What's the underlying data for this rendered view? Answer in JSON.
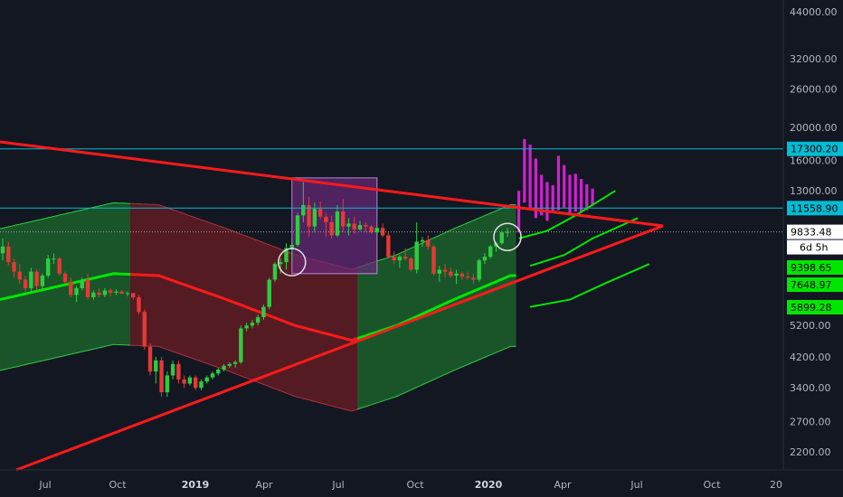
{
  "chart_data": {
    "type": "candlestick",
    "scale": "log",
    "ylim": [
      1900,
      48000
    ],
    "y_ticks": [
      "44000.00",
      "32000.00",
      "26000.00",
      "20000.00",
      "16000.00",
      "13000.00",
      "9833.48",
      "6d 5h",
      "5200.00",
      "4200.00",
      "3400.00",
      "2700.00",
      "2200.00"
    ],
    "x_ticks": [
      {
        "label": "Jul",
        "bold": false
      },
      {
        "label": "Oct",
        "bold": false
      },
      {
        "label": "2019",
        "bold": true
      },
      {
        "label": "Apr",
        "bold": false
      },
      {
        "label": "Jul",
        "bold": false
      },
      {
        "label": "Oct",
        "bold": false
      },
      {
        "label": "2020",
        "bold": true
      },
      {
        "label": "Apr",
        "bold": false
      },
      {
        "label": "Jul",
        "bold": false
      },
      {
        "label": "Oct",
        "bold": false
      },
      {
        "label": "20",
        "bold": false
      }
    ],
    "horizontal_levels": [
      {
        "value": 17300.2,
        "label": "17300.20",
        "color": "#00bcd4"
      },
      {
        "value": 11558.9,
        "label": "11558.90",
        "color": "#00bcd4"
      }
    ],
    "current_price": {
      "value": 9833.48,
      "label": "9833.48",
      "countdown": "6d 5h"
    },
    "right_badges": [
      {
        "value": 9398.65,
        "label": "9398.65",
        "color": "#00e600"
      },
      {
        "value": 7648.97,
        "label": "7648.97",
        "color": "#00e600"
      },
      {
        "value": 5899.28,
        "label": "5899.28",
        "color": "#00e600"
      }
    ],
    "colors": {
      "background": "#131722",
      "up": "#2ecc40",
      "down": "#e53935",
      "projection": "#d41ed4",
      "trendline": "#ff1a1a",
      "band_green": "#1e6b2e",
      "band_red": "#6b1e24",
      "band_line": "#00e600",
      "range_box": "#6a2a7a",
      "level": "#00bcd4"
    },
    "candles_weekly": [
      [
        8500,
        9400,
        8100,
        8900
      ],
      [
        8900,
        9200,
        7800,
        8000
      ],
      [
        8000,
        8200,
        7200,
        7500
      ],
      [
        7500,
        7900,
        6900,
        7100
      ],
      [
        7100,
        7300,
        6500,
        6700
      ],
      [
        6700,
        7700,
        6500,
        7500
      ],
      [
        7500,
        7600,
        6600,
        6800
      ],
      [
        6800,
        7400,
        6600,
        7300
      ],
      [
        7300,
        8400,
        7200,
        8200
      ],
      [
        8200,
        8500,
        7900,
        8200
      ],
      [
        8200,
        8300,
        7300,
        7400
      ],
      [
        7400,
        7500,
        6900,
        7000
      ],
      [
        7000,
        7200,
        6300,
        6400
      ],
      [
        6400,
        6800,
        6100,
        6700
      ],
      [
        6700,
        7200,
        6600,
        7100
      ],
      [
        7100,
        7400,
        6200,
        6300
      ],
      [
        6300,
        6600,
        6200,
        6500
      ],
      [
        6500,
        6700,
        6300,
        6400
      ],
      [
        6400,
        6700,
        6300,
        6600
      ],
      [
        6600,
        6700,
        6350,
        6500
      ],
      [
        6500,
        6650,
        6400,
        6550
      ],
      [
        6550,
        6600,
        6450,
        6450
      ],
      [
        6450,
        6550,
        6350,
        6480
      ],
      [
        6480,
        6500,
        6200,
        6300
      ],
      [
        6300,
        6400,
        5600,
        5700
      ],
      [
        5700,
        5800,
        4400,
        4500
      ],
      [
        4500,
        4600,
        3700,
        3800
      ],
      [
        3800,
        4200,
        3500,
        4100
      ],
      [
        4100,
        4200,
        3200,
        3300
      ],
      [
        3300,
        3800,
        3200,
        3700
      ],
      [
        3700,
        4100,
        3600,
        4000
      ],
      [
        4000,
        4100,
        3500,
        3600
      ],
      [
        3600,
        3700,
        3400,
        3500
      ],
      [
        3500,
        3700,
        3450,
        3650
      ],
      [
        3650,
        3700,
        3350,
        3400
      ],
      [
        3400,
        3600,
        3350,
        3550
      ],
      [
        3550,
        3700,
        3500,
        3650
      ],
      [
        3650,
        3800,
        3600,
        3750
      ],
      [
        3750,
        3900,
        3700,
        3850
      ],
      [
        3850,
        4000,
        3800,
        3950
      ],
      [
        3950,
        4050,
        3900,
        4000
      ],
      [
        4000,
        4100,
        3900,
        4050
      ],
      [
        4050,
        5200,
        4000,
        5100
      ],
      [
        5100,
        5300,
        5000,
        5200
      ],
      [
        5200,
        5400,
        5100,
        5300
      ],
      [
        5300,
        5600,
        5200,
        5500
      ],
      [
        5500,
        6000,
        5400,
        5900
      ],
      [
        5900,
        7200,
        5800,
        7100
      ],
      [
        7100,
        8000,
        7000,
        7900
      ],
      [
        7900,
        8200,
        7400,
        8000
      ],
      [
        8000,
        9100,
        7600,
        8800
      ],
      [
        8800,
        9300,
        8000,
        9000
      ],
      [
        9000,
        11200,
        8900,
        11000
      ],
      [
        11000,
        13800,
        10500,
        11800
      ],
      [
        11800,
        12500,
        9500,
        10200
      ],
      [
        10200,
        12000,
        9800,
        11500
      ],
      [
        11500,
        12100,
        10700,
        10900
      ],
      [
        10900,
        11200,
        9500,
        10500
      ],
      [
        10500,
        11000,
        9400,
        9600
      ],
      [
        9600,
        11800,
        9500,
        11300
      ],
      [
        11300,
        12300,
        9800,
        10200
      ],
      [
        10200,
        10800,
        9600,
        10400
      ],
      [
        10400,
        10900,
        9700,
        10000
      ],
      [
        10000,
        10600,
        9900,
        10300
      ],
      [
        10300,
        10500,
        9800,
        10200
      ],
      [
        10200,
        10300,
        9700,
        9800
      ],
      [
        9800,
        10200,
        9600,
        10100
      ],
      [
        10100,
        10400,
        9500,
        9600
      ],
      [
        9600,
        9800,
        8200,
        8300
      ],
      [
        8300,
        8600,
        7900,
        8100
      ],
      [
        8100,
        8400,
        7700,
        8300
      ],
      [
        8300,
        8800,
        8100,
        8200
      ],
      [
        8200,
        8300,
        7500,
        7600
      ],
      [
        7600,
        10500,
        7400,
        9200
      ],
      [
        9200,
        9500,
        8900,
        9300
      ],
      [
        9300,
        9600,
        8700,
        8900
      ],
      [
        8900,
        9000,
        7300,
        7400
      ],
      [
        7400,
        7800,
        7000,
        7600
      ],
      [
        7600,
        7900,
        7200,
        7500
      ],
      [
        7500,
        7700,
        7200,
        7300
      ],
      [
        7300,
        7600,
        6900,
        7400
      ],
      [
        7400,
        7500,
        7100,
        7250
      ],
      [
        7250,
        7500,
        7100,
        7200
      ],
      [
        7200,
        7400,
        6900,
        7100
      ],
      [
        7100,
        8200,
        7000,
        8100
      ],
      [
        8100,
        8500,
        7900,
        8300
      ],
      [
        8300,
        9000,
        8200,
        8900
      ],
      [
        8900,
        9200,
        8600,
        9100
      ],
      [
        9100,
        9900,
        9000,
        9800
      ],
      [
        9800,
        10100,
        9500,
        9833
      ]
    ],
    "projection_bars": [
      [
        9800,
        13000
      ],
      [
        12000,
        18500
      ],
      [
        11500,
        17800
      ],
      [
        10800,
        16200
      ],
      [
        11000,
        14500
      ],
      [
        10600,
        13800
      ],
      [
        11200,
        13500
      ],
      [
        11400,
        16500
      ],
      [
        11600,
        15500
      ],
      [
        11000,
        14500
      ],
      [
        11300,
        14600
      ],
      [
        11200,
        14100
      ],
      [
        11400,
        13600
      ],
      [
        11800,
        13200
      ]
    ],
    "annotations": [
      {
        "type": "circle",
        "date_index": 51
      },
      {
        "type": "circle",
        "date_index": 89
      },
      {
        "type": "range_box",
        "from_index": 51,
        "to_index": 66,
        "low": 7400,
        "high": 14200
      }
    ]
  }
}
